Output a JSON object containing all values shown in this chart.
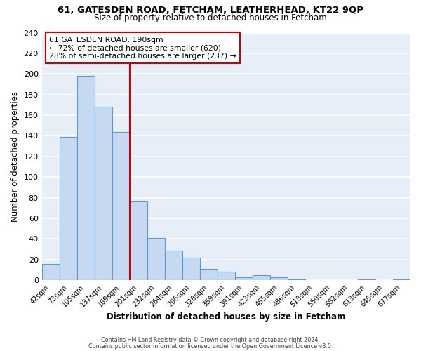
{
  "title": "61, GATESDEN ROAD, FETCHAM, LEATHERHEAD, KT22 9QP",
  "subtitle": "Size of property relative to detached houses in Fetcham",
  "xlabel": "Distribution of detached houses by size in Fetcham",
  "ylabel": "Number of detached properties",
  "footer_line1": "Contains HM Land Registry data © Crown copyright and database right 2024.",
  "footer_line2": "Contains public sector information licensed under the Open Government Licence v3.0.",
  "bar_labels": [
    "42sqm",
    "73sqm",
    "105sqm",
    "137sqm",
    "169sqm",
    "201sqm",
    "232sqm",
    "264sqm",
    "296sqm",
    "328sqm",
    "359sqm",
    "391sqm",
    "423sqm",
    "455sqm",
    "486sqm",
    "518sqm",
    "550sqm",
    "582sqm",
    "613sqm",
    "645sqm",
    "677sqm"
  ],
  "bar_heights": [
    16,
    139,
    198,
    168,
    144,
    76,
    41,
    29,
    22,
    11,
    8,
    3,
    5,
    3,
    1,
    0,
    0,
    0,
    1,
    0,
    1
  ],
  "bar_color": "#c6d9f0",
  "bar_edge_color": "#5b9bd5",
  "annotation_title": "61 GATESDEN ROAD: 190sqm",
  "annotation_line1": "← 72% of detached houses are smaller (620)",
  "annotation_line2": "28% of semi-detached houses are larger (237) →",
  "annotation_box_color": "#ffffff",
  "annotation_box_edge": "#cc0000",
  "ref_line_color": "#cc0000",
  "ylim": [
    0,
    240
  ],
  "yticks": [
    0,
    20,
    40,
    60,
    80,
    100,
    120,
    140,
    160,
    180,
    200,
    220,
    240
  ],
  "background_color": "#ffffff",
  "plot_bg_color": "#e8eef8"
}
